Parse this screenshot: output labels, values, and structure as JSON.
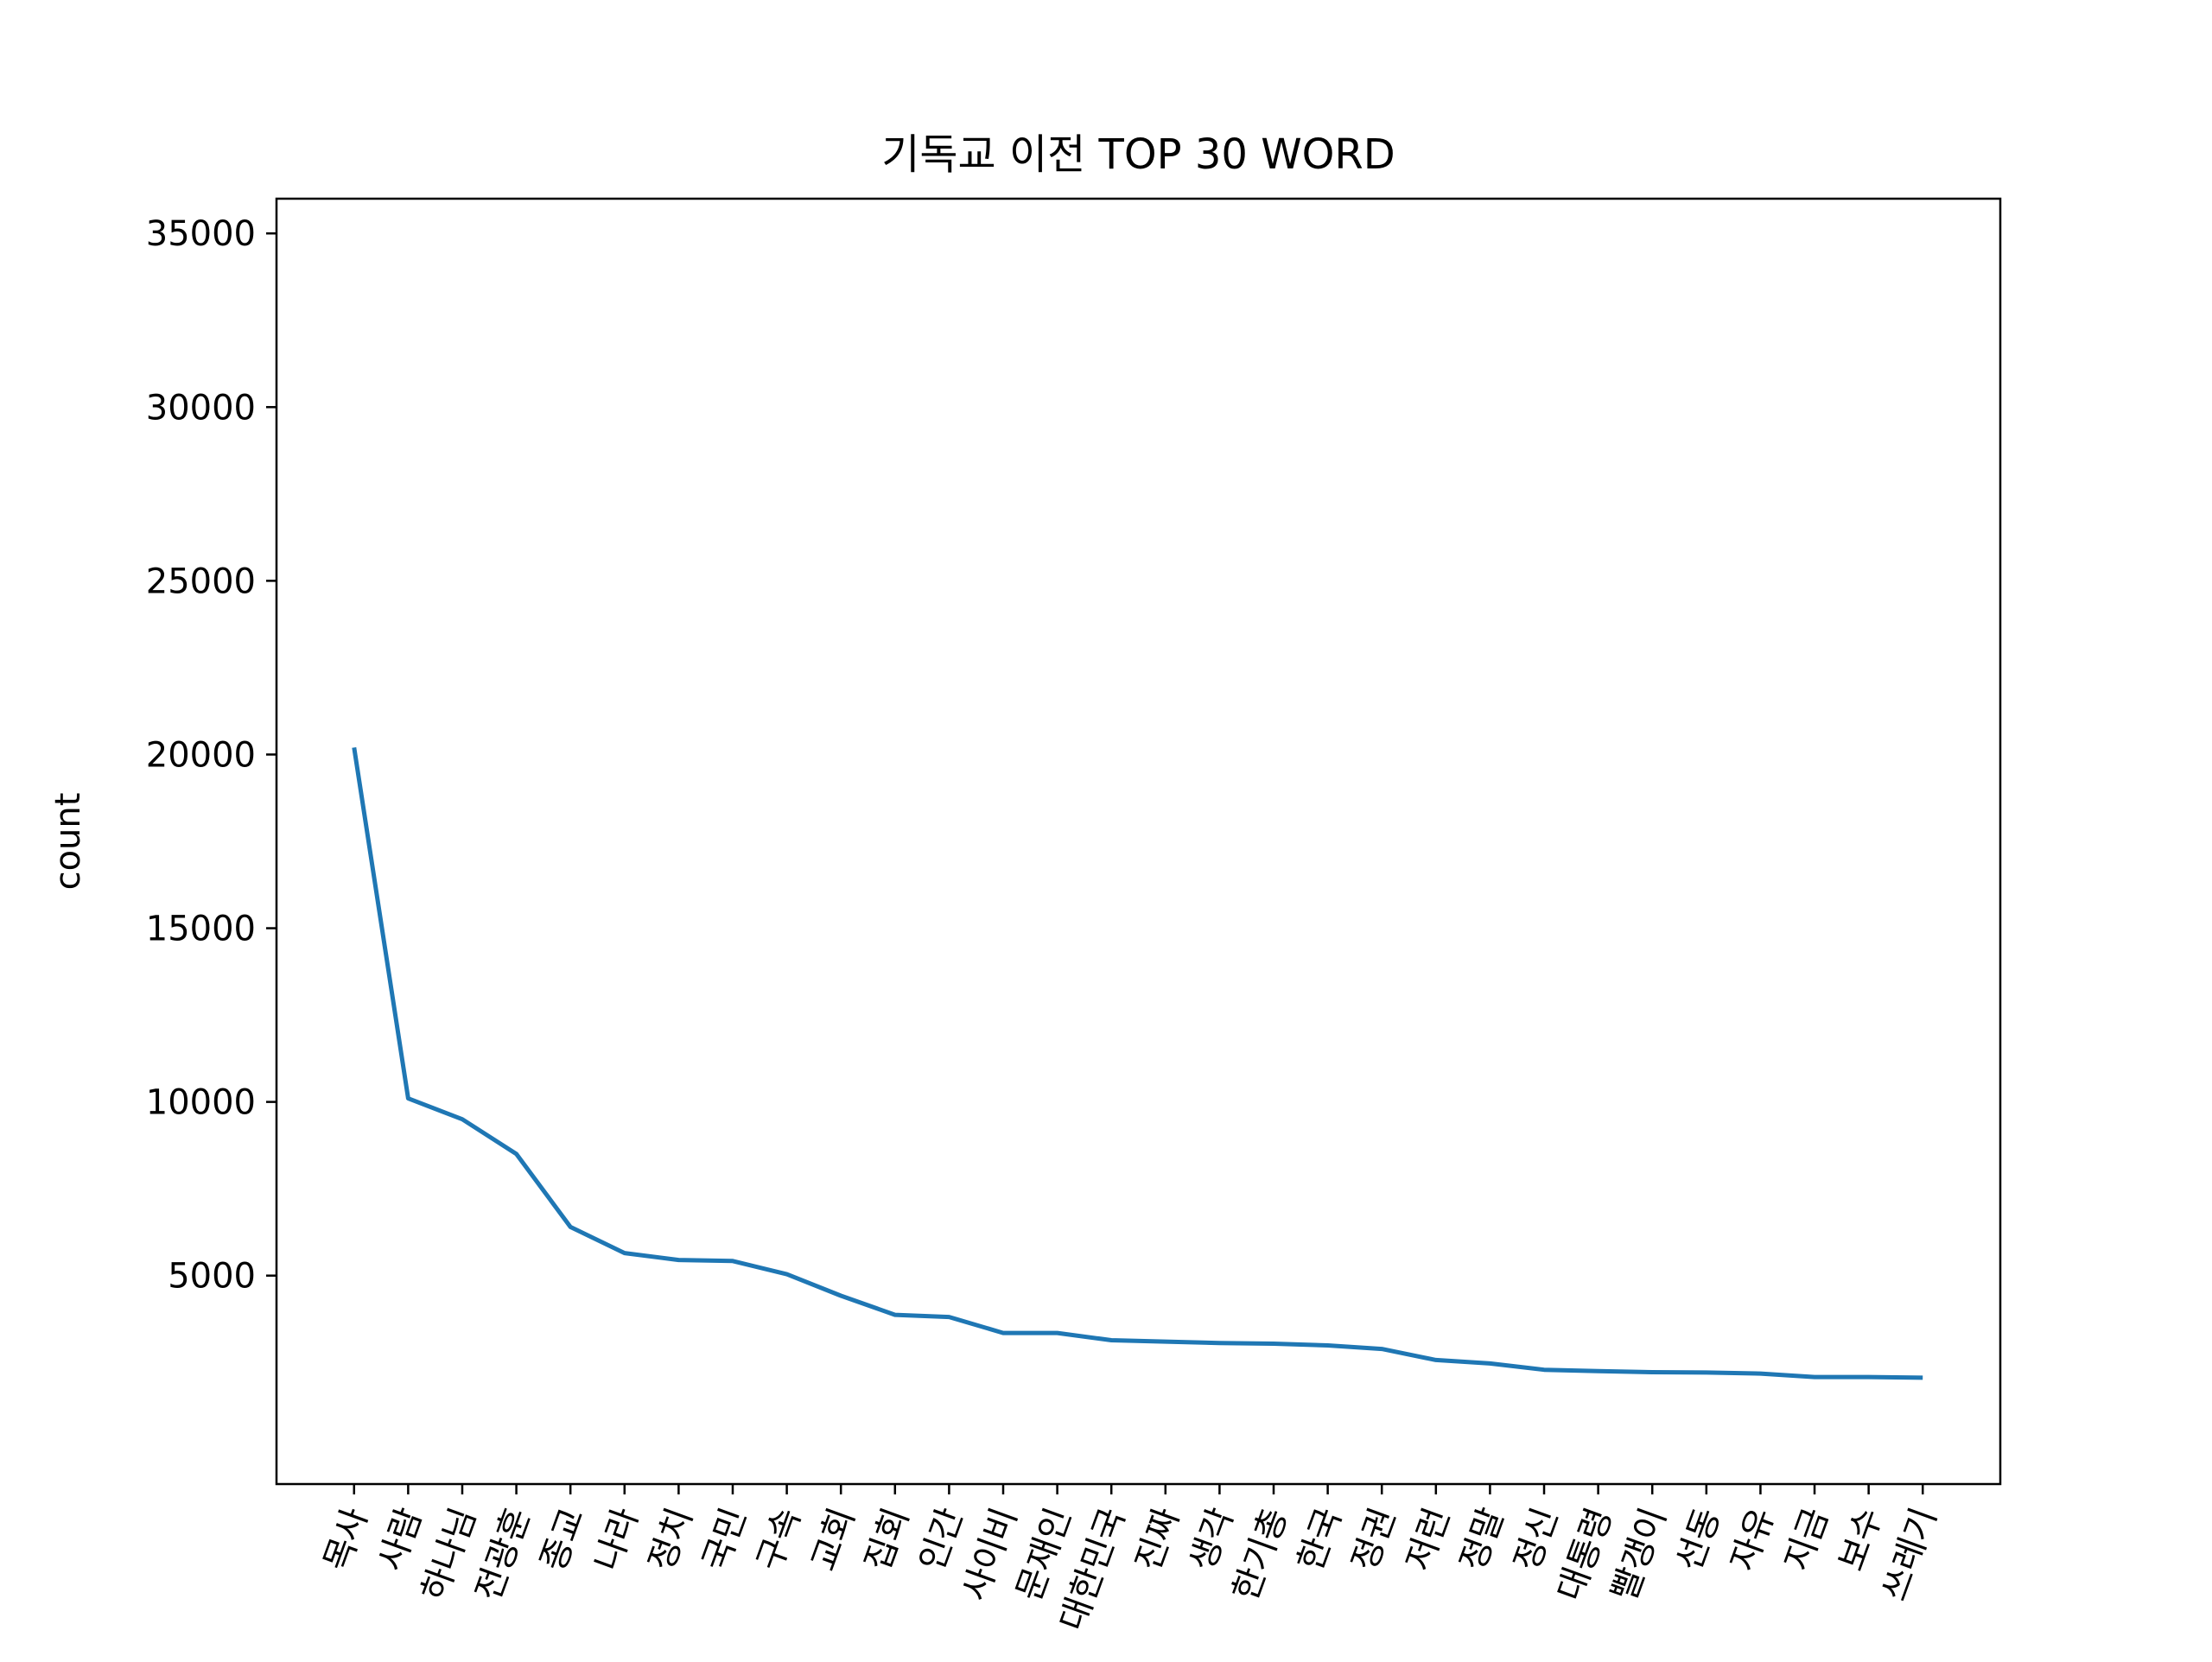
{
  "chart_data": {
    "type": "line",
    "title": "기독교 이전 TOP 30 WORD",
    "xlabel": "",
    "ylabel": "count",
    "categories": [
      "목사",
      "사람",
      "하나님",
      "전광훈",
      "종교",
      "나라",
      "정치",
      "국민",
      "구속",
      "교회",
      "집회",
      "인간",
      "사이비",
      "문재인",
      "대한민국",
      "진짜",
      "생각",
      "한기총",
      "한국",
      "정권",
      "저런",
      "정말",
      "정신",
      "대통령",
      "빨갱이",
      "선동",
      "자유",
      "지금",
      "보수",
      "쓰레기"
    ],
    "series": [
      {
        "values": [
          20200,
          10100,
          9500,
          8500,
          6400,
          5650,
          5450,
          5420,
          5040,
          4420,
          3870,
          3810,
          3350,
          3350,
          3140,
          3100,
          3060,
          3040,
          2990,
          2890,
          2570,
          2470,
          2290,
          2250,
          2220,
          2210,
          2180,
          2080,
          2080,
          2060
        ],
        "color": "#1f77b4"
      }
    ],
    "ylim": [
      -1000,
      36000
    ],
    "yticks": [
      5000,
      10000,
      15000,
      20000,
      25000,
      30000,
      35000
    ],
    "xtick_rotation_deg": 70,
    "grid": false,
    "legend": "none"
  }
}
